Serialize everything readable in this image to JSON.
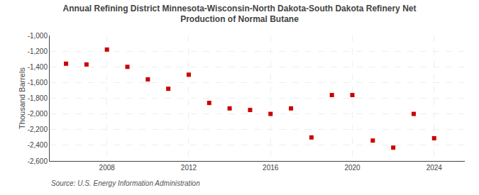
{
  "chart_data": {
    "type": "scatter",
    "title": "Annual Refining District Minnesota-Wisconsin-North Dakota-South Dakota Refinery Net\nProduction of Normal Butane",
    "ylabel": "Thousand Barrels",
    "annotations": [
      "Source: U.S. Energy Information Administration"
    ],
    "x": [
      2006,
      2007,
      2008,
      2009,
      2010,
      2011,
      2012,
      2013,
      2014,
      2015,
      2016,
      2017,
      2018,
      2019,
      2020,
      2021,
      2022,
      2023,
      2024
    ],
    "values": [
      -1360,
      -1370,
      -1180,
      -1400,
      -1560,
      -1680,
      -1500,
      -1860,
      -1930,
      -1950,
      -2000,
      -1930,
      -2300,
      -1760,
      -1760,
      -2340,
      -2430,
      -2000,
      -2310
    ],
    "color": "#cc0000",
    "marker": "square",
    "xlim": [
      2005.2,
      2025.5
    ],
    "xticks": [
      2008,
      2012,
      2016,
      2020,
      2024
    ],
    "ylim": [
      -2600,
      -1000
    ],
    "yticks": [
      {
        "value": -2600,
        "label": "-2,600"
      },
      {
        "value": -2400,
        "label": "-2,400"
      },
      {
        "value": -2200,
        "label": "-2,200"
      },
      {
        "value": -2000,
        "label": "-2,000"
      },
      {
        "value": -1800,
        "label": "-1,800"
      },
      {
        "value": -1600,
        "label": "-1,600"
      },
      {
        "value": -1400,
        "label": "-1,400"
      },
      {
        "value": -1200,
        "label": "-1,200"
      },
      {
        "value": -1000,
        "label": "-1,000"
      }
    ],
    "grid": true
  }
}
